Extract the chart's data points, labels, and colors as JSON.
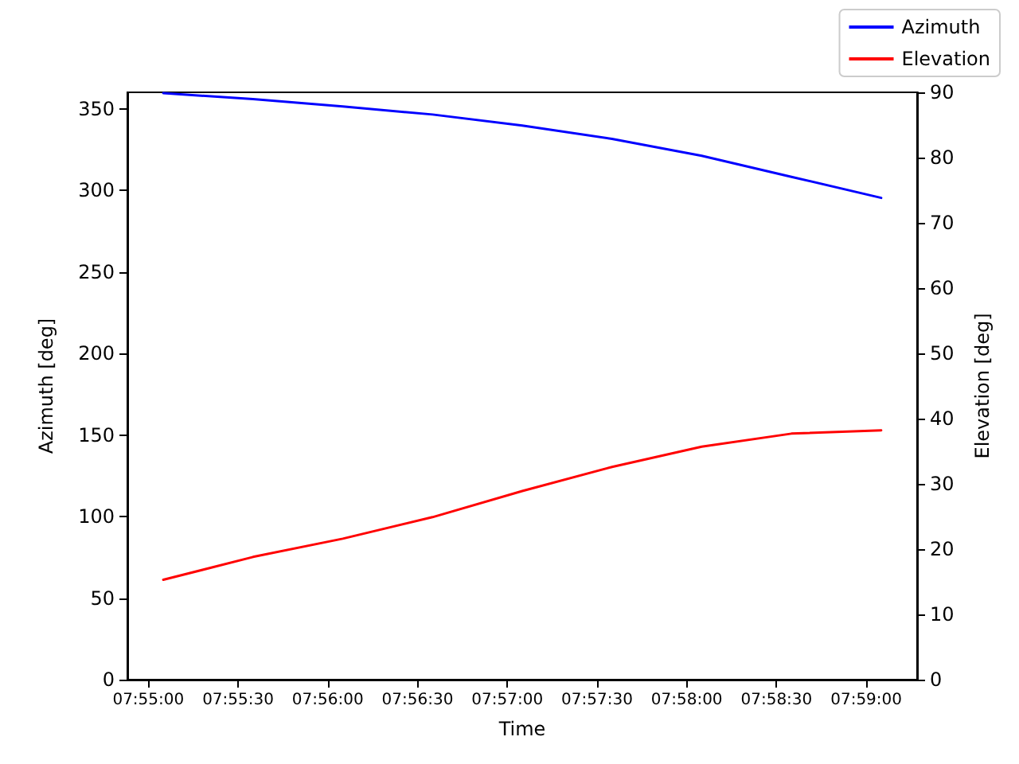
{
  "chart_data": {
    "type": "line",
    "xlabel": "Time",
    "ylabel": "Azimuth [deg]",
    "y2label": "Elevation [deg]",
    "x": [
      7.918056,
      7.926389,
      7.934722,
      7.943056,
      7.951389,
      7.959722,
      7.968056,
      7.976389,
      7.984722
    ],
    "series": [
      {
        "name": "Azimuth",
        "color": "#0000ff",
        "values": [
          359.5,
          355.8,
          351.3,
          346.4,
          339.6,
          331.5,
          321.1,
          308.2,
          295.3
        ]
      },
      {
        "name": "Elevation",
        "color": "#ff0000",
        "axis": "y2",
        "values": [
          15.3,
          18.8,
          21.6,
          24.9,
          28.9,
          32.6,
          35.7,
          37.7,
          38.2
        ]
      }
    ],
    "xlim": [
      7.914722,
      7.988056
    ],
    "xticks": [
      {
        "value": 7.916667,
        "label": "07:55:00"
      },
      {
        "value": 7.925,
        "label": "07:55:30"
      },
      {
        "value": 7.933333,
        "label": "07:56:00"
      },
      {
        "value": 7.941667,
        "label": "07:56:30"
      },
      {
        "value": 7.95,
        "label": "07:57:00"
      },
      {
        "value": 7.958333,
        "label": "07:57:30"
      },
      {
        "value": 7.966667,
        "label": "07:58:00"
      },
      {
        "value": 7.975,
        "label": "07:58:30"
      },
      {
        "value": 7.983333,
        "label": "07:59:00"
      }
    ],
    "ylim": [
      0,
      360
    ],
    "yticks": [
      0,
      50,
      100,
      150,
      200,
      250,
      300,
      350
    ],
    "y2lim": [
      0,
      90
    ],
    "y2ticks": [
      0,
      10,
      20,
      30,
      40,
      50,
      60,
      70,
      80,
      90
    ],
    "legend": "top right",
    "grid": false,
    "marker": "none",
    "line_style": "solid"
  }
}
